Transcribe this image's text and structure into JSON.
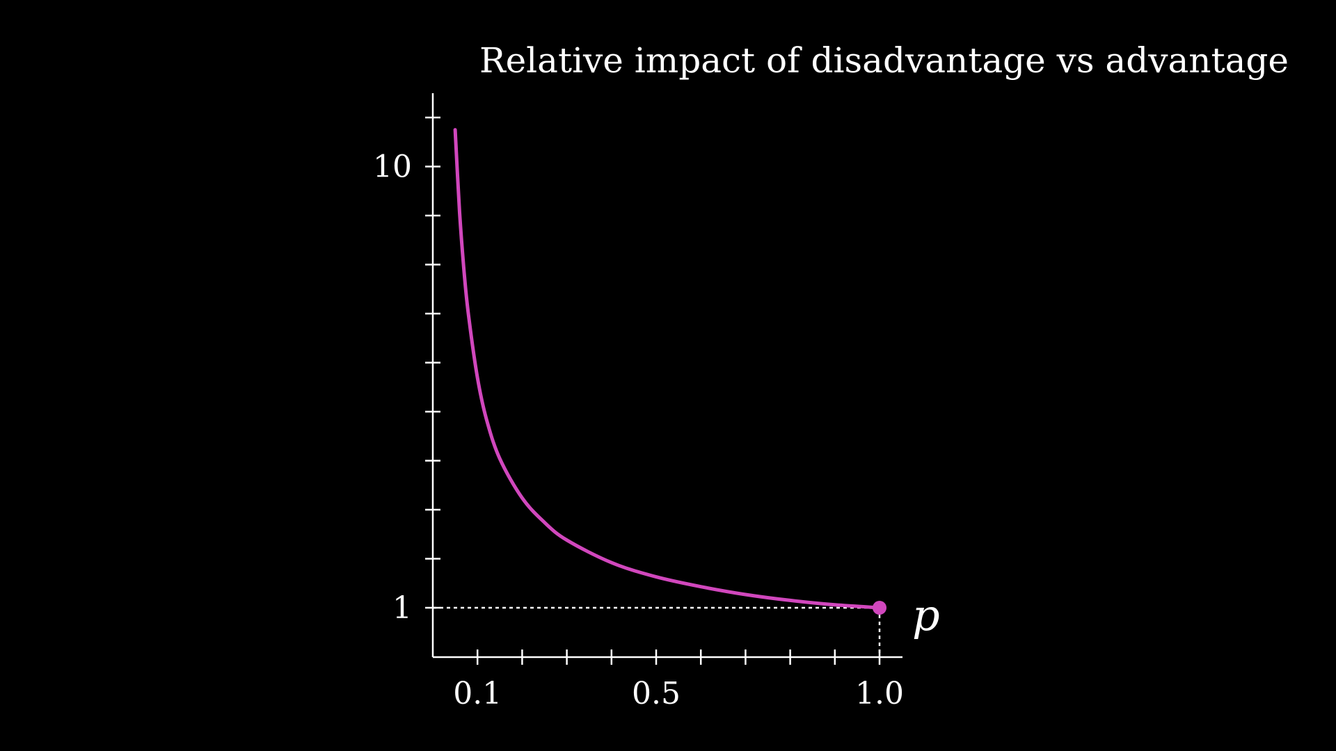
{
  "chart_data": {
    "type": "line",
    "title": "Relative impact of disadvantage vs advantage",
    "xlabel": "p",
    "ylabel": "",
    "xlim": [
      0,
      1.05
    ],
    "ylim": [
      0,
      11.5
    ],
    "x_tick_values": [
      0.1,
      0.2,
      0.3,
      0.4,
      0.5,
      0.6,
      0.7,
      0.8,
      0.9,
      1.0
    ],
    "x_tick_labels": [
      {
        "value": 0.1,
        "label": "0.1"
      },
      {
        "value": 0.5,
        "label": "0.5"
      },
      {
        "value": 1.0,
        "label": "1.0"
      }
    ],
    "y_tick_values": [
      1,
      2,
      3,
      4,
      5,
      6,
      7,
      8,
      9,
      10,
      11
    ],
    "y_tick_labels": [
      {
        "value": 1,
        "label": "1"
      },
      {
        "value": 10,
        "label": "10"
      }
    ],
    "series": [
      {
        "color": "#d147bd",
        "x": [
          0.05,
          0.06,
          0.07,
          0.08,
          0.1,
          0.12,
          0.15,
          0.2,
          0.25,
          0.3,
          0.4,
          0.5,
          0.6,
          0.7,
          0.8,
          0.9,
          1.0
        ],
        "y": [
          10.75,
          9.06,
          7.86,
          6.96,
          5.69,
          4.85,
          4.04,
          3.24,
          2.74,
          2.38,
          1.92,
          1.63,
          1.43,
          1.27,
          1.15,
          1.06,
          1.0
        ]
      }
    ],
    "highlight_point": {
      "x": 1.0,
      "y": 1.0,
      "color": "#d147bd"
    },
    "reference_lines": [
      {
        "orientation": "horizontal",
        "value": 1,
        "style": "dashed"
      },
      {
        "orientation": "vertical",
        "value": 1.0,
        "style": "dashed"
      }
    ],
    "grid": false,
    "background": "#000000",
    "axis_color": "#ffffff"
  }
}
